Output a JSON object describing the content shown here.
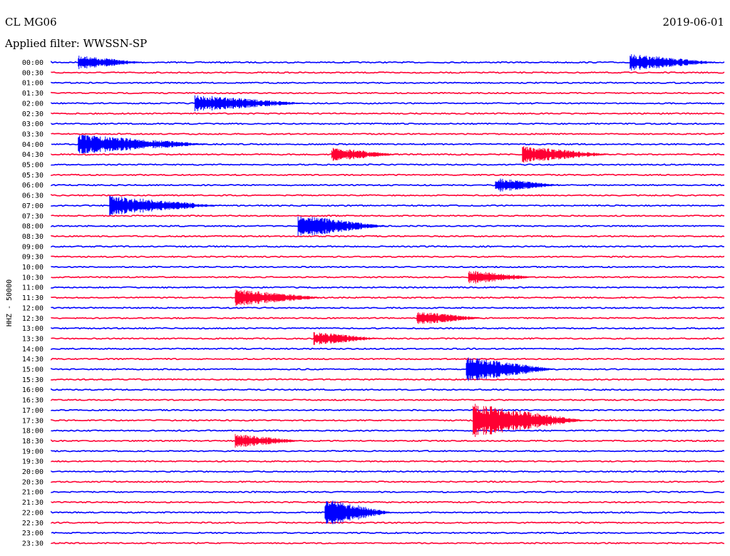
{
  "header": {
    "station": "CL MG06",
    "filter": "Applied filter: WWSSN-SP",
    "date": "2019-06-01"
  },
  "axis": {
    "ylabel": "HHZ - 50000"
  },
  "colors": {
    "blue": "#0000ff",
    "red": "#ff0033",
    "background": "#ffffff"
  },
  "chart_data": {
    "type": "line",
    "subtype": "helicorder",
    "rows": [
      "00:00",
      "00:30",
      "01:00",
      "01:30",
      "02:00",
      "02:30",
      "03:00",
      "03:30",
      "04:00",
      "04:30",
      "05:00",
      "05:30",
      "06:00",
      "06:30",
      "07:00",
      "07:30",
      "08:00",
      "08:30",
      "09:00",
      "09:30",
      "10:00",
      "10:30",
      "11:00",
      "11:30",
      "12:00",
      "12:30",
      "13:00",
      "13:30",
      "14:00",
      "14:30",
      "15:00",
      "15:30",
      "16:00",
      "16:30",
      "17:00",
      "17:30",
      "18:00",
      "18:30",
      "19:00",
      "19:30",
      "20:00",
      "20:30",
      "21:00",
      "21:30",
      "22:00",
      "22:30",
      "23:00",
      "23:30"
    ],
    "row_colors": [
      "blue",
      "red"
    ],
    "x_range_minutes": [
      0,
      30
    ],
    "events": [
      {
        "row": "00:00",
        "minute": 1.2,
        "amp": 10,
        "dur": 3
      },
      {
        "row": "00:00",
        "minute": 25.8,
        "amp": 12,
        "dur": 4
      },
      {
        "row": "02:00",
        "minute": 6.4,
        "amp": 12,
        "dur": 5
      },
      {
        "row": "04:00",
        "minute": 1.2,
        "amp": 14,
        "dur": 6
      },
      {
        "row": "04:30",
        "minute": 12.5,
        "amp": 10,
        "dur": 3
      },
      {
        "row": "04:30",
        "minute": 21.0,
        "amp": 12,
        "dur": 4
      },
      {
        "row": "06:00",
        "minute": 19.8,
        "amp": 10,
        "dur": 3
      },
      {
        "row": "07:00",
        "minute": 2.6,
        "amp": 14,
        "dur": 5
      },
      {
        "row": "08:00",
        "minute": 11.0,
        "amp": 16,
        "dur": 4
      },
      {
        "row": "10:30",
        "minute": 18.6,
        "amp": 10,
        "dur": 3
      },
      {
        "row": "11:30",
        "minute": 8.2,
        "amp": 12,
        "dur": 4
      },
      {
        "row": "12:30",
        "minute": 16.3,
        "amp": 10,
        "dur": 3
      },
      {
        "row": "13:30",
        "minute": 11.7,
        "amp": 10,
        "dur": 3
      },
      {
        "row": "15:00",
        "minute": 18.5,
        "amp": 18,
        "dur": 4
      },
      {
        "row": "17:30",
        "minute": 18.8,
        "amp": 24,
        "dur": 5
      },
      {
        "row": "18:30",
        "minute": 8.2,
        "amp": 10,
        "dur": 3
      },
      {
        "row": "22:00",
        "minute": 12.2,
        "amp": 20,
        "dur": 3
      }
    ]
  }
}
